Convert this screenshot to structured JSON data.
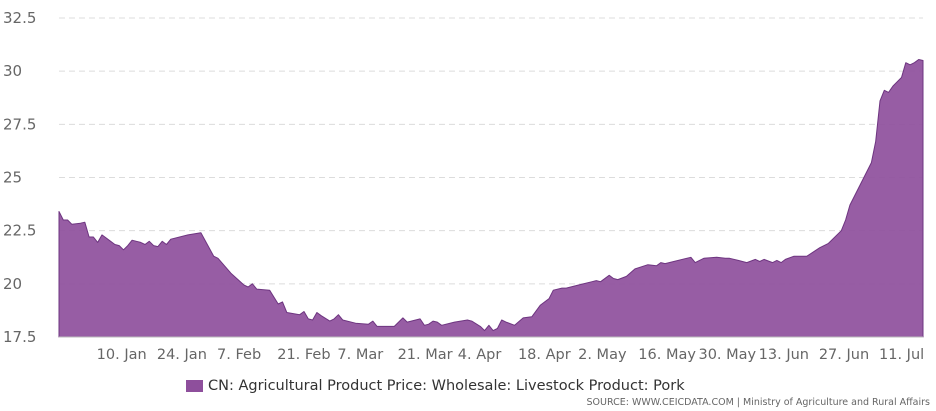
{
  "chart_data": {
    "type": "area",
    "title": "",
    "xlabel": "",
    "ylabel": "",
    "ylim": [
      17.5,
      32.5
    ],
    "yticks": [
      "17.5",
      "20",
      "22.5",
      "25",
      "27.5",
      "30",
      "32.5"
    ],
    "grid": "horizontal dashed",
    "xticks": [
      "10. Jan",
      "24. Jan",
      "7. Feb",
      "21. Feb",
      "7. Mar",
      "21. Mar",
      "4. Apr",
      "18. Apr",
      "2. May",
      "16. May",
      "30. May",
      "13. Jun",
      "27. Jun",
      "11. Jul"
    ],
    "x_start": "2022-01-01",
    "x_end": "2022-07-21",
    "series": [
      {
        "name": "CN: Agricultural Product Price: Wholesale: Livestock Product: Pork",
        "color": "#8e4f9c",
        "points": [
          [
            "2022-01-01",
            23.4
          ],
          [
            "2022-01-02",
            23.0
          ],
          [
            "2022-01-03",
            23.0
          ],
          [
            "2022-01-04",
            22.8
          ],
          [
            "2022-01-06",
            22.85
          ],
          [
            "2022-01-07",
            22.9
          ],
          [
            "2022-01-08",
            22.2
          ],
          [
            "2022-01-09",
            22.2
          ],
          [
            "2022-01-10",
            21.95
          ],
          [
            "2022-01-11",
            22.3
          ],
          [
            "2022-01-13",
            22.0
          ],
          [
            "2022-01-14",
            21.85
          ],
          [
            "2022-01-15",
            21.8
          ],
          [
            "2022-01-16",
            21.6
          ],
          [
            "2022-01-17",
            21.8
          ],
          [
            "2022-01-18",
            22.05
          ],
          [
            "2022-01-19",
            22.0
          ],
          [
            "2022-01-20",
            21.95
          ],
          [
            "2022-01-21",
            21.85
          ],
          [
            "2022-01-22",
            22.0
          ],
          [
            "2022-01-23",
            21.8
          ],
          [
            "2022-01-24",
            21.75
          ],
          [
            "2022-01-25",
            22.0
          ],
          [
            "2022-01-26",
            21.85
          ],
          [
            "2022-01-27",
            22.1
          ],
          [
            "2022-01-31",
            22.3
          ],
          [
            "2022-02-03",
            22.4
          ],
          [
            "2022-02-06",
            21.3
          ],
          [
            "2022-02-07",
            21.2
          ],
          [
            "2022-02-10",
            20.5
          ],
          [
            "2022-02-13",
            19.95
          ],
          [
            "2022-02-14",
            19.85
          ],
          [
            "2022-02-15",
            20.0
          ],
          [
            "2022-02-16",
            19.75
          ],
          [
            "2022-02-19",
            19.7
          ],
          [
            "2022-02-21",
            19.05
          ],
          [
            "2022-02-22",
            19.15
          ],
          [
            "2022-02-23",
            18.65
          ],
          [
            "2022-02-26",
            18.55
          ],
          [
            "2022-02-27",
            18.7
          ],
          [
            "2022-02-28",
            18.35
          ],
          [
            "2022-03-01",
            18.3
          ],
          [
            "2022-03-02",
            18.65
          ],
          [
            "2022-03-03",
            18.5
          ],
          [
            "2022-03-05",
            18.25
          ],
          [
            "2022-03-06",
            18.35
          ],
          [
            "2022-03-07",
            18.55
          ],
          [
            "2022-03-08",
            18.3
          ],
          [
            "2022-03-11",
            18.15
          ],
          [
            "2022-03-14",
            18.1
          ],
          [
            "2022-03-15",
            18.25
          ],
          [
            "2022-03-16",
            18.0
          ],
          [
            "2022-03-20",
            18.0
          ],
          [
            "2022-03-22",
            18.4
          ],
          [
            "2022-03-23",
            18.2
          ],
          [
            "2022-03-26",
            18.35
          ],
          [
            "2022-03-27",
            18.05
          ],
          [
            "2022-03-28",
            18.1
          ],
          [
            "2022-03-29",
            18.25
          ],
          [
            "2022-03-30",
            18.2
          ],
          [
            "2022-03-31",
            18.05
          ],
          [
            "2022-04-03",
            18.2
          ],
          [
            "2022-04-06",
            18.3
          ],
          [
            "2022-04-07",
            18.25
          ],
          [
            "2022-04-09",
            18.0
          ],
          [
            "2022-04-10",
            17.8
          ],
          [
            "2022-04-11",
            18.05
          ],
          [
            "2022-04-12",
            17.8
          ],
          [
            "2022-04-13",
            17.9
          ],
          [
            "2022-04-14",
            18.3
          ],
          [
            "2022-04-15",
            18.2
          ],
          [
            "2022-04-17",
            18.05
          ],
          [
            "2022-04-19",
            18.4
          ],
          [
            "2022-04-21",
            18.45
          ],
          [
            "2022-04-23",
            19.0
          ],
          [
            "2022-04-25",
            19.3
          ],
          [
            "2022-04-26",
            19.7
          ],
          [
            "2022-04-28",
            19.8
          ],
          [
            "2022-04-29",
            19.8
          ],
          [
            "2022-05-02",
            19.95
          ],
          [
            "2022-05-05",
            20.1
          ],
          [
            "2022-05-06",
            20.15
          ],
          [
            "2022-05-07",
            20.1
          ],
          [
            "2022-05-09",
            20.4
          ],
          [
            "2022-05-10",
            20.25
          ],
          [
            "2022-05-11",
            20.2
          ],
          [
            "2022-05-13",
            20.35
          ],
          [
            "2022-05-15",
            20.7
          ],
          [
            "2022-05-18",
            20.9
          ],
          [
            "2022-05-20",
            20.85
          ],
          [
            "2022-05-21",
            21.0
          ],
          [
            "2022-05-22",
            20.95
          ],
          [
            "2022-05-24",
            21.05
          ],
          [
            "2022-05-27",
            21.2
          ],
          [
            "2022-05-28",
            21.25
          ],
          [
            "2022-05-29",
            21.0
          ],
          [
            "2022-05-31",
            21.2
          ],
          [
            "2022-06-03",
            21.25
          ],
          [
            "2022-06-05",
            21.2
          ],
          [
            "2022-06-06",
            21.2
          ],
          [
            "2022-06-08",
            21.1
          ],
          [
            "2022-06-10",
            21.0
          ],
          [
            "2022-06-12",
            21.15
          ],
          [
            "2022-06-13",
            21.05
          ],
          [
            "2022-06-14",
            21.15
          ],
          [
            "2022-06-16",
            21.0
          ],
          [
            "2022-06-17",
            21.1
          ],
          [
            "2022-06-18",
            21.0
          ],
          [
            "2022-06-19",
            21.15
          ],
          [
            "2022-06-21",
            21.3
          ],
          [
            "2022-06-24",
            21.3
          ],
          [
            "2022-06-27",
            21.7
          ],
          [
            "2022-06-29",
            21.9
          ],
          [
            "2022-07-02",
            22.5
          ],
          [
            "2022-07-03",
            23.0
          ],
          [
            "2022-07-04",
            23.7
          ],
          [
            "2022-07-06",
            24.5
          ],
          [
            "2022-07-08",
            25.3
          ],
          [
            "2022-07-09",
            25.7
          ],
          [
            "2022-07-10",
            26.7
          ],
          [
            "2022-07-11",
            28.6
          ],
          [
            "2022-07-12",
            29.1
          ],
          [
            "2022-07-13",
            29.0
          ],
          [
            "2022-07-14",
            29.3
          ],
          [
            "2022-07-16",
            29.7
          ],
          [
            "2022-07-17",
            30.4
          ],
          [
            "2022-07-18",
            30.3
          ],
          [
            "2022-07-19",
            30.4
          ],
          [
            "2022-07-20",
            30.55
          ],
          [
            "2022-07-21",
            30.5
          ]
        ]
      }
    ],
    "legend": {
      "position": "bottom",
      "label": "CN: Agricultural Product Price: Wholesale: Livestock Product: Pork"
    }
  },
  "source_text": "SOURCE: WWW.CEICDATA.COM | Ministry of Agriculture and Rural Affairs"
}
